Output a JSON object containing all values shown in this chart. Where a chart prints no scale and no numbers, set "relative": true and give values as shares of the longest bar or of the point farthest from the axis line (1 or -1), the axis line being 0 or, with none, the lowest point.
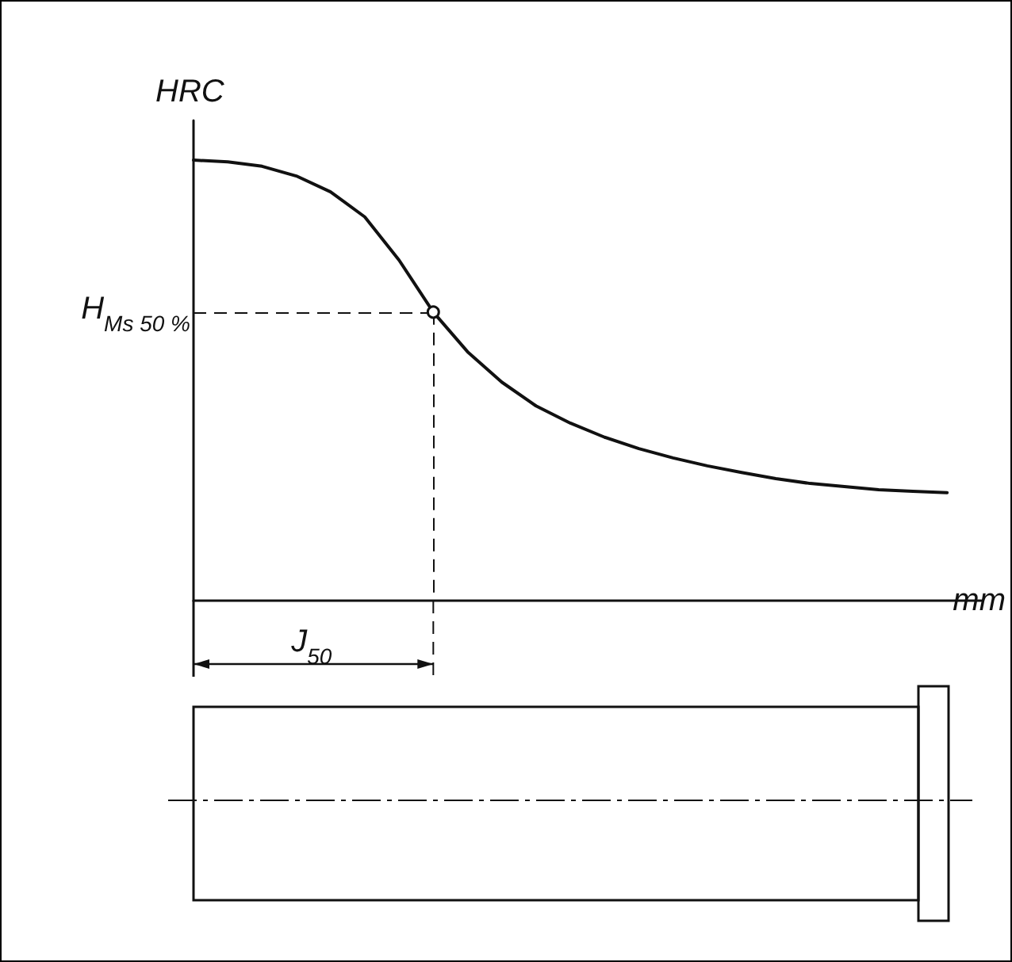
{
  "chart_data": {
    "type": "line",
    "relative": true,
    "ylabel": "HRC",
    "xlabel": "mm",
    "categories": [
      null,
      null,
      null,
      null,
      null,
      null,
      null,
      null,
      null,
      null,
      null,
      null,
      null,
      null,
      null,
      null,
      null,
      null,
      null,
      null,
      null,
      null,
      null,
      null
    ],
    "series": [
      {
        "color": "#111111",
        "values": [
          1,
          0.996,
          0.986,
          0.964,
          0.928,
          0.871,
          0.773,
          0.655,
          0.565,
          0.496,
          0.442,
          0.403,
          0.371,
          0.345,
          0.324,
          0.306,
          0.291,
          0.277,
          0.266,
          0.259,
          0.252,
          0.248,
          0.245,
          null
        ]
      }
    ],
    "ref_lines": [
      {
        "axis": "y",
        "value": 0.655,
        "label": "H$_{Ms 50 %}$",
        "line_style": "dashed"
      }
    ],
    "annotations": [
      "J$_{50}$"
    ],
    "marker": "none",
    "line_style": "solid",
    "grid": false
  }
}
